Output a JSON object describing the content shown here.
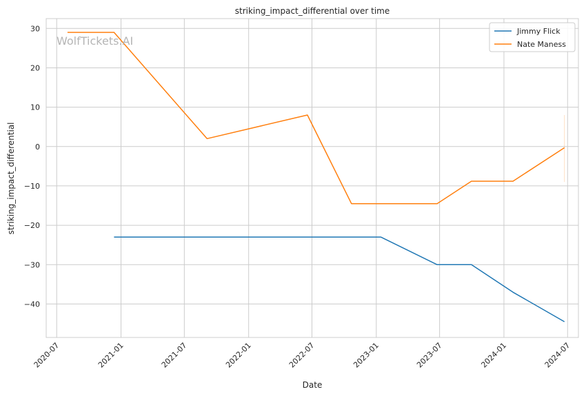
{
  "chart_data": {
    "type": "line",
    "title": "striking_impact_differential over time",
    "xlabel": "Date",
    "ylabel": "striking_impact_differential",
    "watermark": "WolfTickets.AI",
    "x_tick_labels": [
      "2020-07",
      "2021-01",
      "2021-07",
      "2022-01",
      "2022-07",
      "2023-01",
      "2023-07",
      "2024-01",
      "2024-07"
    ],
    "y_ticks": [
      30,
      20,
      10,
      0,
      -10,
      -20,
      -30,
      -40
    ],
    "y_tick_labels": [
      "30",
      "20",
      "10",
      "0",
      "−10",
      "−20",
      "−30",
      "−40"
    ],
    "xlim": [
      "2020-06-01",
      "2024-08-01"
    ],
    "ylim": [
      -48.5,
      32.5
    ],
    "grid": true,
    "legend_position": "top-right",
    "series": [
      {
        "name": "Jimmy Flick",
        "color": "#1f77b4",
        "points": [
          {
            "x": "2020-12-12",
            "y": -23
          },
          {
            "x": "2023-01-14",
            "y": -23
          },
          {
            "x": "2023-06-24",
            "y": -30
          },
          {
            "x": "2023-09-30",
            "y": -30
          },
          {
            "x": "2024-01-27",
            "y": -37
          },
          {
            "x": "2024-06-22",
            "y": -44.5
          }
        ]
      },
      {
        "name": "Nate Maness",
        "color": "#ff7f0e",
        "points": [
          {
            "x": "2020-08-01",
            "y": 29
          },
          {
            "x": "2020-12-12",
            "y": 29
          },
          {
            "x": "2021-09-04",
            "y": 2
          },
          {
            "x": "2022-06-18",
            "y": 8
          },
          {
            "x": "2022-10-22",
            "y": -14.5
          },
          {
            "x": "2023-06-24",
            "y": -14.5
          },
          {
            "x": "2023-09-30",
            "y": -8.8
          },
          {
            "x": "2024-01-27",
            "y": -8.8
          },
          {
            "x": "2024-06-22",
            "y": -0.3
          }
        ],
        "band": {
          "x": "2024-06-22",
          "low": -9,
          "high": 8
        }
      }
    ]
  }
}
